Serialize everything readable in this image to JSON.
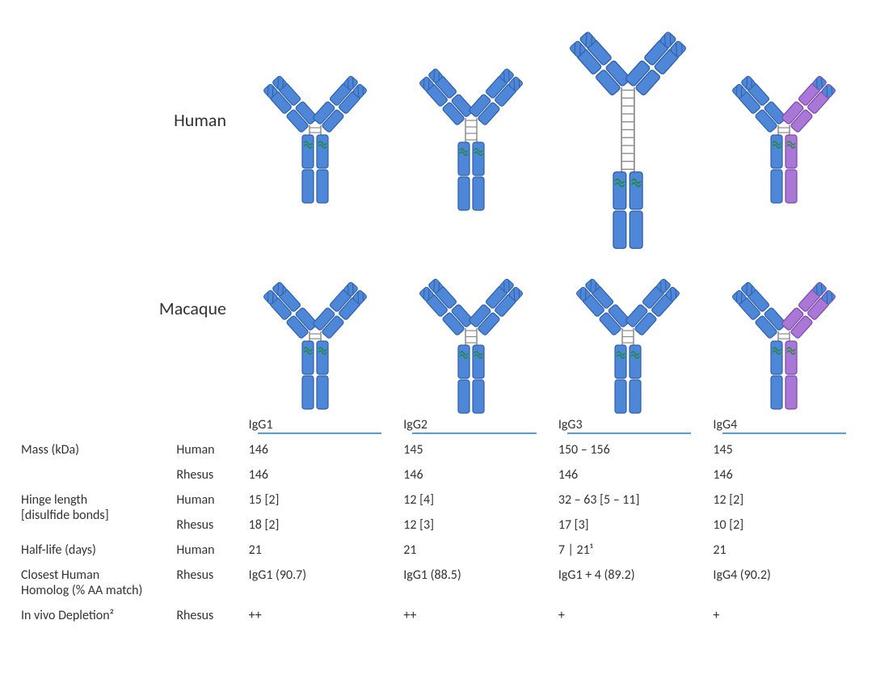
{
  "diagram": {
    "rows": [
      "Human",
      "Macaque"
    ],
    "columns": [
      "IgG1",
      "IgG2",
      "IgG3",
      "IgG4"
    ],
    "colors": {
      "blue_fill": "#4f87d8",
      "blue_stroke": "#2e5fa8",
      "purple_fill": "#a977d6",
      "purple_stroke": "#7a49a8",
      "green_glyco": "#1f8a3b",
      "hinge_rail": "#8a8a8a",
      "underline": "#4f9de9",
      "text": "#333333",
      "background": "#ffffff"
    },
    "antibodies": {
      "human": [
        {
          "hinge_bonds": 2,
          "scale": 1.0,
          "right_color": "blue"
        },
        {
          "hinge_bonds": 4,
          "scale": 1.0,
          "right_color": "blue"
        },
        {
          "hinge_bonds": 11,
          "scale": 1.3,
          "right_color": "blue"
        },
        {
          "hinge_bonds": 2,
          "scale": 1.0,
          "right_color": "purple"
        }
      ],
      "macaque": [
        {
          "hinge_bonds": 2,
          "scale": 1.0,
          "right_color": "blue"
        },
        {
          "hinge_bonds": 3,
          "scale": 1.0,
          "right_color": "blue"
        },
        {
          "hinge_bonds": 3,
          "scale": 1.0,
          "right_color": "blue"
        },
        {
          "hinge_bonds": 2,
          "scale": 1.0,
          "right_color": "purple"
        }
      ]
    }
  },
  "table": {
    "col_headers": [
      "IgG1",
      "IgG2",
      "IgG3",
      "IgG4"
    ],
    "metrics": [
      {
        "label": "Mass (kDa)",
        "rows": [
          {
            "species": "Human",
            "values": [
              "146",
              "145",
              "150 – 156",
              "145"
            ]
          },
          {
            "species": "Rhesus",
            "values": [
              "146",
              "146",
              "146",
              "146"
            ]
          }
        ]
      },
      {
        "label": "Hinge length",
        "label2": "[disulfide bonds]",
        "rows": [
          {
            "species": "Human",
            "values": [
              "15 [2]",
              "12 [4]",
              "32 – 63 [5 – 11]",
              "12 [2]"
            ]
          },
          {
            "species": "Rhesus",
            "values": [
              "18 [2]",
              "12 [3]",
              "17 [3]",
              "10 [2]"
            ]
          }
        ]
      },
      {
        "label": "Half-life (days)",
        "rows": [
          {
            "species": "Human",
            "values": [
              "21",
              "21",
              "7 | 21¹",
              "21"
            ]
          }
        ]
      },
      {
        "label": "Closest Human",
        "label2": "Homolog (% AA match)",
        "rows": [
          {
            "species": "Rhesus",
            "values": [
              "IgG1 (90.7)",
              "IgG1 (88.5)",
              "IgG1 + 4 (89.2)",
              "IgG4 (90.2)"
            ]
          }
        ]
      },
      {
        "label": "In vivo Depletion²",
        "rows": [
          {
            "species": "Rhesus",
            "values": [
              "++",
              "++",
              "+",
              "+"
            ]
          }
        ]
      }
    ]
  }
}
